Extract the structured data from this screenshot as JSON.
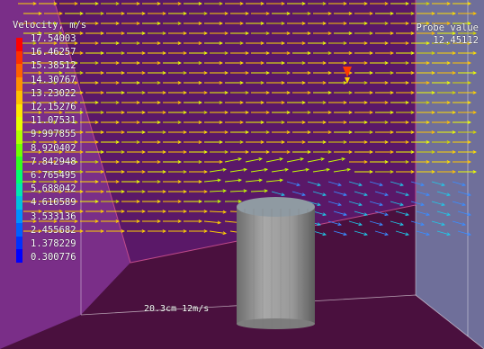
{
  "legend": {
    "title": "Velocity, m/s",
    "values": [
      "17.54003",
      "16.46257",
      "15.38512",
      "14.30767",
      "13.23022",
      "12.15276",
      "11.07531",
      "9.997855",
      "8.920402",
      "7.842948",
      "6.765495",
      "5.688042",
      "4.610589",
      "3.533136",
      "2.455682",
      "1.378229",
      "0.300776"
    ],
    "colors": [
      "#ff0000",
      "#ff3000",
      "#ff6000",
      "#ff9000",
      "#ffc000",
      "#ffe800",
      "#e8ff00",
      "#b0ff00",
      "#70ff00",
      "#30ff20",
      "#00ff70",
      "#00e8b0",
      "#00c0e0",
      "#0090ff",
      "#0060ff",
      "#0030ff",
      "#0000ff"
    ]
  },
  "probe": {
    "label": "Probe value",
    "value": "12.45112"
  },
  "scale": {
    "label": "20.3cm 12m/s"
  }
}
